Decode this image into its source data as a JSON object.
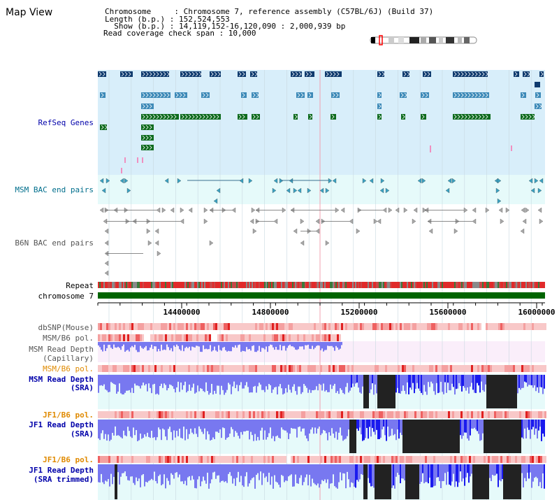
{
  "page": {
    "title": "Map View"
  },
  "info": {
    "line1": "Chromosome     : Chromosome 7, reference assembly (C57BL/6J) (Build 37)",
    "line2": "Length (b.p.) : 152,524,553",
    "line3": "  Show (b.p.) : 14,119,152-16,120,090 : 2,000,939 bp",
    "line4": "Read coverage check span : 10,000"
  },
  "tracks": {
    "refseq": "RefSeq Genes",
    "msm_bac": "MSM BAC end pairs",
    "b6n_bac": "B6N BAC end pairs",
    "repeat": "Repeat",
    "chromosome": "chromosome 7",
    "dbsnp": "dbSNP(Mouse)",
    "msm_b6_pol_1": "MSM/B6 pol.",
    "msm_depth_cap_1": "MSM Read Depth",
    "msm_depth_cap_2": "(Capillary)",
    "msm_b6_pol_2": "MSM/B6 pol.",
    "msm_depth_sra_1": "MSM Read Depth",
    "msm_depth_sra_2": "(SRA)",
    "jf1_b6_pol_1": "JF1/B6 pol.",
    "jf1_depth_sra_1": "JF1 Read Depth",
    "jf1_depth_sra_2": "(SRA)",
    "jf1_b6_pol_2": "JF1/B6 pol.",
    "jf1_depth_trim_1": "JF1 Read Depth",
    "jf1_depth_trim_2": "(SRA trimmed)"
  },
  "axis": {
    "ticks": [
      "14400000",
      "14800000",
      "15200000",
      "15600000",
      "16000000"
    ]
  },
  "colors": {
    "refseq_bg": "#d8eefa",
    "msm_bg": "#e6fafa",
    "depth_bg_pink": "#faeefa",
    "depth_bg_cyan": "#e6fafa",
    "label_blue": "#0000aa",
    "label_orange": "#e08a00",
    "label_teal": "#006e8c",
    "label_grey": "#555555"
  }
}
